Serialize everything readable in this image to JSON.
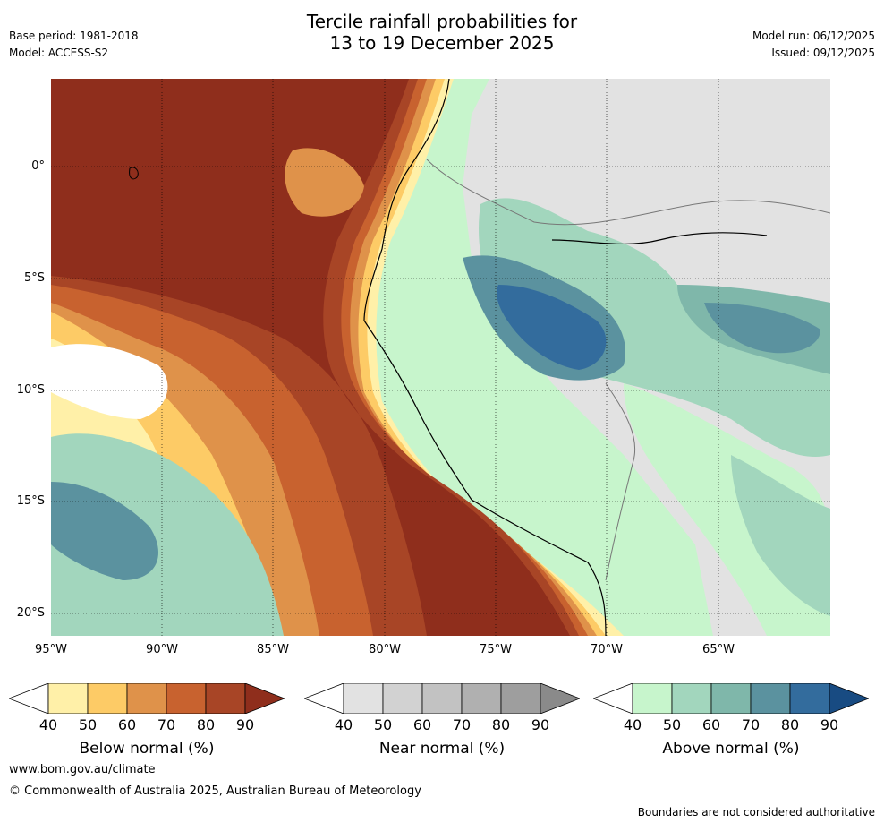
{
  "header": {
    "title_line1": "Tercile rainfall probabilities for",
    "title_line2": "13 to 19 December 2025",
    "base_period": "Base period: 1981-2018",
    "model": "Model: ACCESS-S2",
    "model_run": "Model run: 06/12/2025",
    "issued": "Issued: 09/12/2025"
  },
  "map": {
    "lon_labels": [
      "95°W",
      "90°W",
      "85°W",
      "80°W",
      "75°W",
      "70°W",
      "65°W"
    ],
    "lat_labels": [
      "0°",
      "5°S",
      "10°S",
      "15°S",
      "20°S"
    ]
  },
  "colorbars": [
    {
      "id": "below",
      "label": "Below normal (%)",
      "ticks": [
        "40",
        "50",
        "60",
        "70",
        "80",
        "90"
      ],
      "colors": [
        "#fff0a8",
        "#fdcb66",
        "#df924a",
        "#c8622f",
        "#a84526",
        "#8f2e1c"
      ]
    },
    {
      "id": "near",
      "label": "Near normal (%)",
      "ticks": [
        "40",
        "50",
        "60",
        "70",
        "80",
        "90"
      ],
      "colors": [
        "#e2e2e2",
        "#d2d2d2",
        "#c2c2c2",
        "#b0b0b0",
        "#9e9e9e",
        "#8a8a8a"
      ]
    },
    {
      "id": "above",
      "label": "Above normal (%)",
      "ticks": [
        "40",
        "50",
        "60",
        "70",
        "80",
        "90"
      ],
      "colors": [
        "#c7f5cc",
        "#a2d6bd",
        "#7fb7aa",
        "#5b929f",
        "#336c9d",
        "#184b82"
      ]
    }
  ],
  "footer": {
    "url": "www.bom.gov.au/climate",
    "copyright": "© Commonwealth of Australia 2025, Australian Bureau of Meteorology",
    "note": "Boundaries are not considered authoritative"
  }
}
